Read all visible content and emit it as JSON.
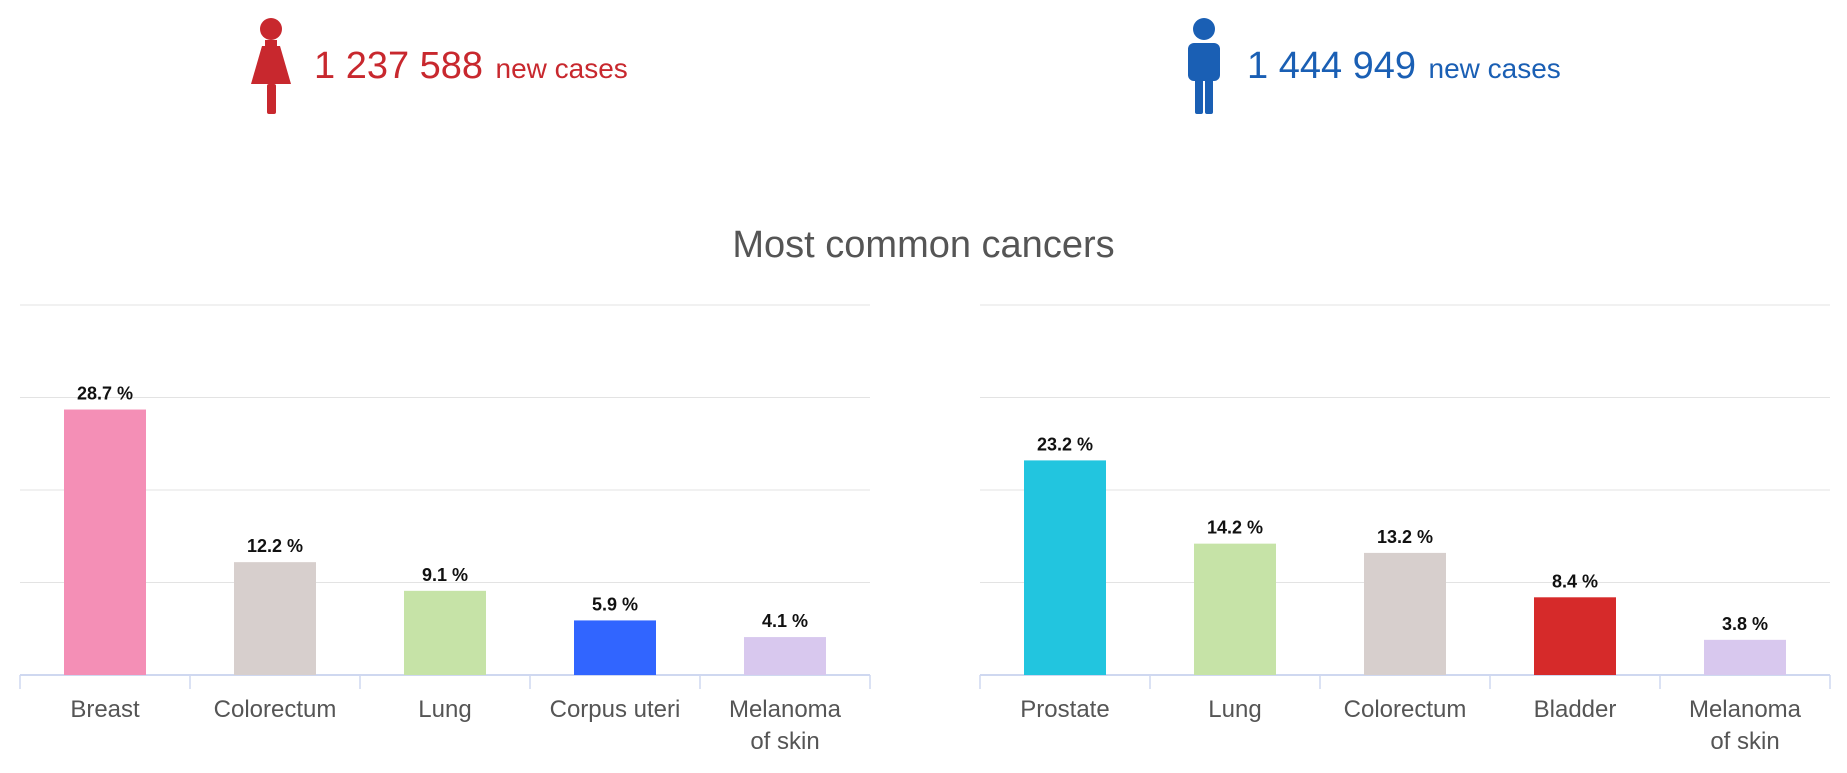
{
  "header": {
    "female": {
      "count": "1 237 588",
      "label": "new cases",
      "color": "#c8282e",
      "icon": "female-person-icon"
    },
    "male": {
      "count": "1 444 949",
      "label": "new cases",
      "color": "#1a5fb4",
      "icon": "male-person-icon"
    }
  },
  "title": "Most common cancers",
  "chart_data": [
    {
      "type": "bar",
      "categories": [
        "Breast",
        "Colorectum",
        "Lung",
        "Corpus uteri",
        "Melanoma of skin"
      ],
      "values": [
        28.7,
        12.2,
        9.1,
        5.9,
        4.1
      ],
      "labels": [
        "28.7 %",
        "12.2 %",
        "9.1 %",
        "5.9 %",
        "4.1 %"
      ],
      "colors": [
        "#f48fb6",
        "#d7cfcd",
        "#c6e3a7",
        "#3165ff",
        "#d8c8ee"
      ],
      "ylim": [
        0,
        40
      ],
      "grid": true
    },
    {
      "type": "bar",
      "categories": [
        "Prostate",
        "Lung",
        "Colorectum",
        "Bladder",
        "Melanoma of skin"
      ],
      "values": [
        23.2,
        14.2,
        13.2,
        8.4,
        3.8
      ],
      "labels": [
        "23.2 %",
        "14.2 %",
        "13.2 %",
        "8.4 %",
        "3.8 %"
      ],
      "colors": [
        "#22c5df",
        "#c6e3a7",
        "#d7cfcd",
        "#d62a2a",
        "#d8c8ee"
      ],
      "ylim": [
        0,
        40
      ],
      "grid": true
    }
  ]
}
